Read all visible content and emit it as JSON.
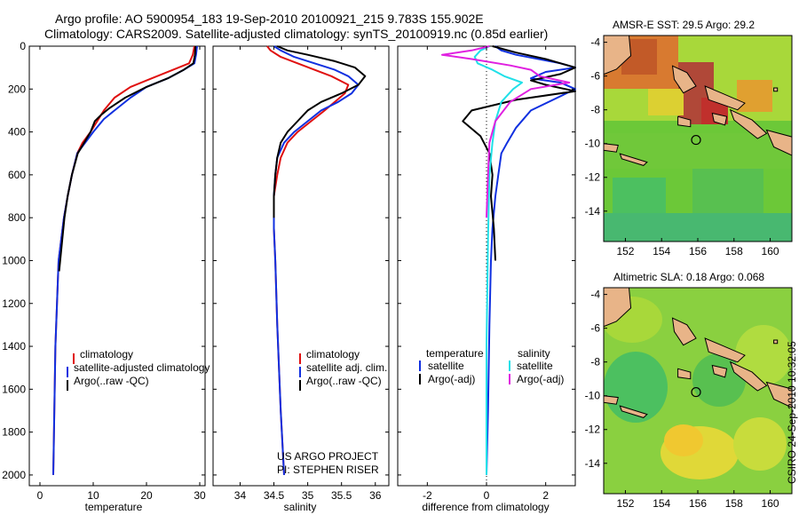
{
  "header": {
    "line1": "Argo profile: AO 5900954_183 19-Sep-2010 20100921_215 9.783S 155.902E",
    "line2": "Climatology: CARS2009. Satellite-adjusted climatology: synTS_20100919.nc (0.85d earlier)"
  },
  "colors": {
    "climatology": "#e01010",
    "satellite": "#1030e0",
    "argo": "#000000",
    "salinity_sat": "#20e0e8",
    "salinity_argo": "#e020e0",
    "land": "#e8b488",
    "coast": "#000000"
  },
  "chart_data": [
    {
      "type": "line",
      "id": "temperature",
      "xlabel": "temperature",
      "ylabel": "",
      "xlim": [
        -2,
        31
      ],
      "ylim": [
        2050,
        0
      ],
      "xticks": [
        0,
        10,
        20,
        30
      ],
      "yticks": [
        0,
        200,
        400,
        600,
        800,
        1000,
        1200,
        1400,
        1600,
        1800,
        2000
      ],
      "legend": [
        "climatology",
        "satellite-adjusted climatology",
        "Argo(..raw -QC)"
      ],
      "series": [
        {
          "name": "climatology",
          "color": "red",
          "x": [
            29,
            28.7,
            28,
            25,
            21,
            17,
            14,
            12,
            11,
            9.5,
            8,
            7,
            6,
            5.2,
            4.5,
            4,
            3.5,
            3.2,
            2.9,
            2.7,
            2.5
          ],
          "y": [
            0,
            40,
            80,
            110,
            150,
            190,
            240,
            300,
            340,
            400,
            450,
            500,
            600,
            700,
            800,
            900,
            1000,
            1200,
            1400,
            1700,
            2000
          ]
        },
        {
          "name": "satellite-adjusted climatology",
          "color": "blue",
          "x": [
            29.5,
            29.3,
            29,
            27,
            24,
            20,
            17,
            14,
            12,
            10,
            8.5,
            7,
            6,
            5.2,
            4.5,
            4,
            3.5,
            3.2,
            2.9,
            2.7,
            2.5
          ],
          "y": [
            0,
            40,
            80,
            110,
            150,
            190,
            240,
            300,
            340,
            400,
            450,
            500,
            600,
            700,
            800,
            900,
            1000,
            1200,
            1400,
            1700,
            2000
          ]
        },
        {
          "name": "Argo(..raw -QC)",
          "color": "black",
          "x": [
            29.2,
            29.1,
            28.8,
            27,
            24,
            20,
            16,
            13,
            11.5,
            10.3,
            9.5,
            8.3,
            7.1,
            6,
            5.2,
            4.6,
            4.2,
            3.8,
            3.6
          ],
          "y": [
            0,
            40,
            80,
            110,
            150,
            190,
            240,
            290,
            320,
            350,
            400,
            450,
            500,
            600,
            700,
            800,
            900,
            1000,
            1050
          ]
        }
      ]
    },
    {
      "type": "line",
      "id": "salinity",
      "xlabel": "salinity",
      "ylabel": "",
      "xlim": [
        33.6,
        36.2
      ],
      "ylim": [
        2050,
        0
      ],
      "xticks": [
        34,
        34.5,
        35,
        35.5,
        36
      ],
      "yticks": [
        0,
        200,
        400,
        600,
        800,
        1000,
        1200,
        1400,
        1600,
        1800,
        2000
      ],
      "legend": [
        "climatology",
        "satellite adj. clim.",
        "Argo(..raw -QC)"
      ],
      "annotation": [
        "US ARGO PROJECT",
        "PI: STEPHEN RISER"
      ],
      "series": [
        {
          "name": "climatology",
          "color": "red",
          "x": [
            34.4,
            34.45,
            34.6,
            34.85,
            35.1,
            35.35,
            35.6,
            35.55,
            35.4,
            35.25,
            35.05,
            34.85,
            34.7,
            34.6,
            34.55,
            34.5,
            34.5,
            34.52,
            34.55,
            34.6,
            34.65
          ],
          "y": [
            0,
            20,
            50,
            80,
            110,
            140,
            180,
            220,
            260,
            300,
            350,
            400,
            450,
            520,
            600,
            700,
            850,
            1000,
            1300,
            1700,
            2000
          ]
        },
        {
          "name": "satellite adj. clim.",
          "color": "blue",
          "x": [
            34.5,
            34.6,
            34.8,
            35.1,
            35.4,
            35.6,
            35.75,
            35.65,
            35.45,
            35.2,
            35,
            34.8,
            34.65,
            34.55,
            34.52,
            34.5,
            34.5,
            34.52,
            34.55,
            34.6,
            34.65
          ],
          "y": [
            0,
            20,
            50,
            80,
            110,
            140,
            180,
            220,
            260,
            300,
            350,
            400,
            450,
            520,
            600,
            700,
            850,
            1000,
            1300,
            1700,
            2000
          ]
        },
        {
          "name": "Argo(..raw -QC)",
          "color": "black",
          "x": [
            34.55,
            34.7,
            35.0,
            35.4,
            35.7,
            35.85,
            35.75,
            35.5,
            35.2,
            35.0,
            34.85,
            34.7,
            34.6,
            34.55,
            34.52,
            34.5,
            34.5
          ],
          "y": [
            0,
            20,
            40,
            70,
            100,
            140,
            180,
            220,
            260,
            300,
            350,
            400,
            450,
            520,
            600,
            700,
            800
          ]
        }
      ]
    },
    {
      "type": "line",
      "id": "difference",
      "xlabel": "difference from climatology",
      "ylabel": "",
      "xlim": [
        -3,
        3
      ],
      "ylim": [
        2050,
        0
      ],
      "xticks": [
        -2,
        0,
        2
      ],
      "yticks": [
        0,
        200,
        400,
        600,
        800,
        1000,
        1200,
        1400,
        1600,
        1800,
        2000
      ],
      "legend_left_title": "temperature",
      "legend_right_title": "salinity",
      "legend": [
        "satellite",
        "Argo(-adj)",
        "satellite",
        "Argo(-adj)"
      ],
      "series": [
        {
          "name": "temperature satellite",
          "color": "blue",
          "x": [
            0.3,
            0.5,
            1,
            2.5,
            3,
            2,
            1.5,
            2.5,
            3,
            1.5,
            1,
            0.7,
            0.5,
            0.4,
            0.3,
            0.2,
            0.15,
            0.1,
            0.05,
            0
          ],
          "y": [
            0,
            20,
            40,
            80,
            100,
            120,
            150,
            170,
            200,
            300,
            380,
            450,
            500,
            600,
            700,
            850,
            1000,
            1300,
            1700,
            2000
          ]
        },
        {
          "name": "temperature Argo(-adj)",
          "color": "black",
          "x": [
            0.2,
            1,
            2,
            3,
            2.5,
            1.5,
            2,
            3,
            1,
            -0.5,
            -0.8,
            -0.2,
            0.1,
            0.2,
            0.15,
            0.25,
            0.3
          ],
          "y": [
            0,
            30,
            60,
            100,
            130,
            160,
            180,
            210,
            250,
            300,
            350,
            420,
            500,
            600,
            700,
            850,
            1000
          ]
        },
        {
          "name": "salinity satellite",
          "color": "cyan",
          "x": [
            0.1,
            -0.2,
            -0.4,
            -0.3,
            0.2,
            0.6,
            1.2,
            0.9,
            0.5,
            0.3,
            0.2,
            0.1,
            0.05,
            0,
            0
          ],
          "y": [
            0,
            20,
            50,
            80,
            110,
            140,
            170,
            200,
            260,
            350,
            450,
            600,
            900,
            1400,
            2000
          ]
        },
        {
          "name": "salinity Argo(-adj)",
          "color": "magenta",
          "x": [
            0.1,
            -0.5,
            -1.5,
            -0.5,
            0.8,
            1.5,
            1.8,
            2.8,
            1.5,
            0.8,
            0.3,
            0.1,
            0.05,
            0
          ],
          "y": [
            0,
            20,
            40,
            60,
            90,
            110,
            140,
            170,
            200,
            260,
            350,
            450,
            600,
            800
          ]
        }
      ]
    }
  ],
  "maps": [
    {
      "title": "AMSR-E SST: 29.5 Argo: 29.2",
      "xlim": [
        150.8,
        161.2
      ],
      "ylim": [
        -15.8,
        -3.6
      ],
      "xticks": [
        152,
        154,
        156,
        158,
        160
      ],
      "yticks": [
        -4,
        -6,
        -8,
        -10,
        -12,
        -14
      ],
      "marker": {
        "lon": 155.902,
        "lat": -9.783
      }
    },
    {
      "title": "Altimetric SLA: 0.18 Argo: 0.068",
      "xlim": [
        150.8,
        161.2
      ],
      "ylim": [
        -15.8,
        -3.6
      ],
      "xticks": [
        152,
        154,
        156,
        158,
        160
      ],
      "yticks": [
        -4,
        -6,
        -8,
        -10,
        -12,
        -14
      ],
      "marker": {
        "lon": 155.902,
        "lat": -9.783
      }
    }
  ],
  "footer": {
    "stamp": "CSIRO 24-Sep-2010 10:32:05"
  }
}
